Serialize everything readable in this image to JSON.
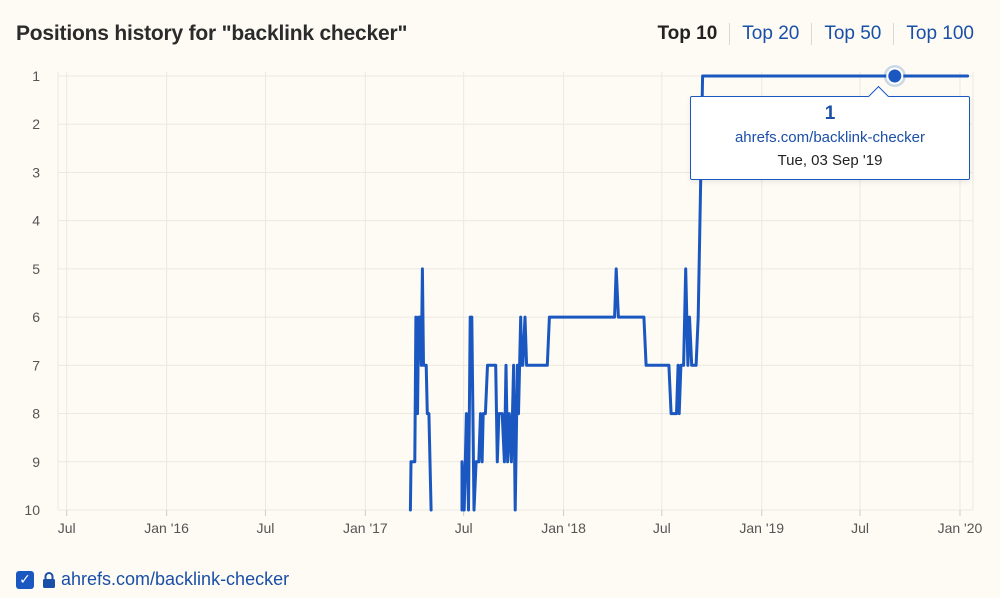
{
  "header": {
    "title": "Positions history for \"backlink checker\"",
    "tabs": [
      {
        "label": "Top 10",
        "active": true
      },
      {
        "label": "Top 20",
        "active": false
      },
      {
        "label": "Top 50",
        "active": false
      },
      {
        "label": "Top 100",
        "active": false
      }
    ]
  },
  "tooltip": {
    "value": "1",
    "url": "ahrefs.com/backlink-checker",
    "date": "Tue, 03 Sep '19"
  },
  "legend": {
    "checked": true,
    "label": "ahrefs.com/backlink-checker",
    "icon": "lock-icon"
  },
  "colors": {
    "series": "#1b57c0",
    "grid": "#ebe9e0",
    "tab_link": "#1a4fa8"
  },
  "chart_data": {
    "type": "line",
    "title": "Positions history for \"backlink checker\"",
    "ylim": [
      1,
      10
    ],
    "y_reversed": true,
    "yticks": [
      1,
      2,
      3,
      4,
      5,
      6,
      7,
      8,
      9,
      10
    ],
    "xlim": [
      "2015-06-15",
      "2020-01-25"
    ],
    "xticks": [
      {
        "date": "2015-07-01",
        "label": "Jul"
      },
      {
        "date": "2016-01-01",
        "label": "Jan '16"
      },
      {
        "date": "2016-07-01",
        "label": "Jul"
      },
      {
        "date": "2017-01-01",
        "label": "Jan '17"
      },
      {
        "date": "2017-07-01",
        "label": "Jul"
      },
      {
        "date": "2018-01-01",
        "label": "Jan '18"
      },
      {
        "date": "2018-07-01",
        "label": "Jul"
      },
      {
        "date": "2019-01-01",
        "label": "Jan '19"
      },
      {
        "date": "2019-07-01",
        "label": "Jul"
      },
      {
        "date": "2020-01-01",
        "label": "Jan '20"
      }
    ],
    "grid": true,
    "highlight": {
      "date": "2019-09-03",
      "value": 1
    },
    "series": [
      {
        "name": "ahrefs.com/backlink-checker",
        "segments": [
          [
            [
              "2017-03-25",
              10
            ],
            [
              "2017-03-26",
              9
            ],
            [
              "2017-04-02",
              9
            ],
            [
              "2017-04-04",
              6
            ],
            [
              "2017-04-07",
              8
            ],
            [
              "2017-04-09",
              6
            ],
            [
              "2017-04-12",
              6
            ],
            [
              "2017-04-14",
              7
            ],
            [
              "2017-04-16",
              5
            ],
            [
              "2017-04-18",
              7
            ],
            [
              "2017-04-23",
              7
            ],
            [
              "2017-04-25",
              8
            ],
            [
              "2017-04-28",
              8
            ],
            [
              "2017-05-02",
              10
            ]
          ],
          [
            [
              "2017-06-28",
              10
            ],
            [
              "2017-06-28",
              9
            ],
            [
              "2017-07-02",
              10
            ],
            [
              "2017-07-06",
              8
            ],
            [
              "2017-07-10",
              10
            ],
            [
              "2017-07-13",
              6
            ],
            [
              "2017-07-16",
              6
            ],
            [
              "2017-07-20",
              10
            ],
            [
              "2017-07-24",
              9
            ],
            [
              "2017-07-29",
              9
            ],
            [
              "2017-08-01",
              8
            ],
            [
              "2017-08-04",
              9
            ],
            [
              "2017-08-06",
              8
            ],
            [
              "2017-08-10",
              8
            ],
            [
              "2017-08-14",
              7
            ],
            [
              "2017-08-29",
              7
            ],
            [
              "2017-09-01",
              9
            ],
            [
              "2017-09-04",
              8
            ],
            [
              "2017-09-10",
              8
            ],
            [
              "2017-09-14",
              9
            ],
            [
              "2017-09-17",
              7
            ],
            [
              "2017-09-20",
              9
            ],
            [
              "2017-09-23",
              8
            ],
            [
              "2017-09-27",
              9
            ],
            [
              "2017-10-01",
              7
            ],
            [
              "2017-10-04",
              10
            ],
            [
              "2017-10-08",
              7
            ],
            [
              "2017-10-10",
              8
            ],
            [
              "2017-10-14",
              6
            ],
            [
              "2017-10-16",
              7
            ],
            [
              "2017-10-18",
              7
            ],
            [
              "2017-10-22",
              6
            ],
            [
              "2017-10-25",
              7
            ],
            [
              "2017-12-02",
              7
            ],
            [
              "2017-12-06",
              6
            ],
            [
              "2018-04-05",
              6
            ],
            [
              "2018-04-08",
              5
            ],
            [
              "2018-04-12",
              6
            ],
            [
              "2018-05-29",
              6
            ],
            [
              "2018-06-02",
              7
            ],
            [
              "2018-07-14",
              7
            ],
            [
              "2018-07-18",
              8
            ],
            [
              "2018-07-28",
              8
            ],
            [
              "2018-07-31",
              7
            ],
            [
              "2018-08-02",
              8
            ],
            [
              "2018-08-05",
              7
            ],
            [
              "2018-08-10",
              7
            ],
            [
              "2018-08-14",
              5
            ],
            [
              "2018-08-18",
              7
            ],
            [
              "2018-08-21",
              6
            ],
            [
              "2018-08-25",
              7
            ],
            [
              "2018-09-02",
              7
            ],
            [
              "2018-09-06",
              6
            ],
            [
              "2018-09-14",
              1
            ],
            [
              "2018-09-24",
              1
            ],
            [
              "2020-01-15",
              1
            ]
          ]
        ]
      }
    ]
  }
}
